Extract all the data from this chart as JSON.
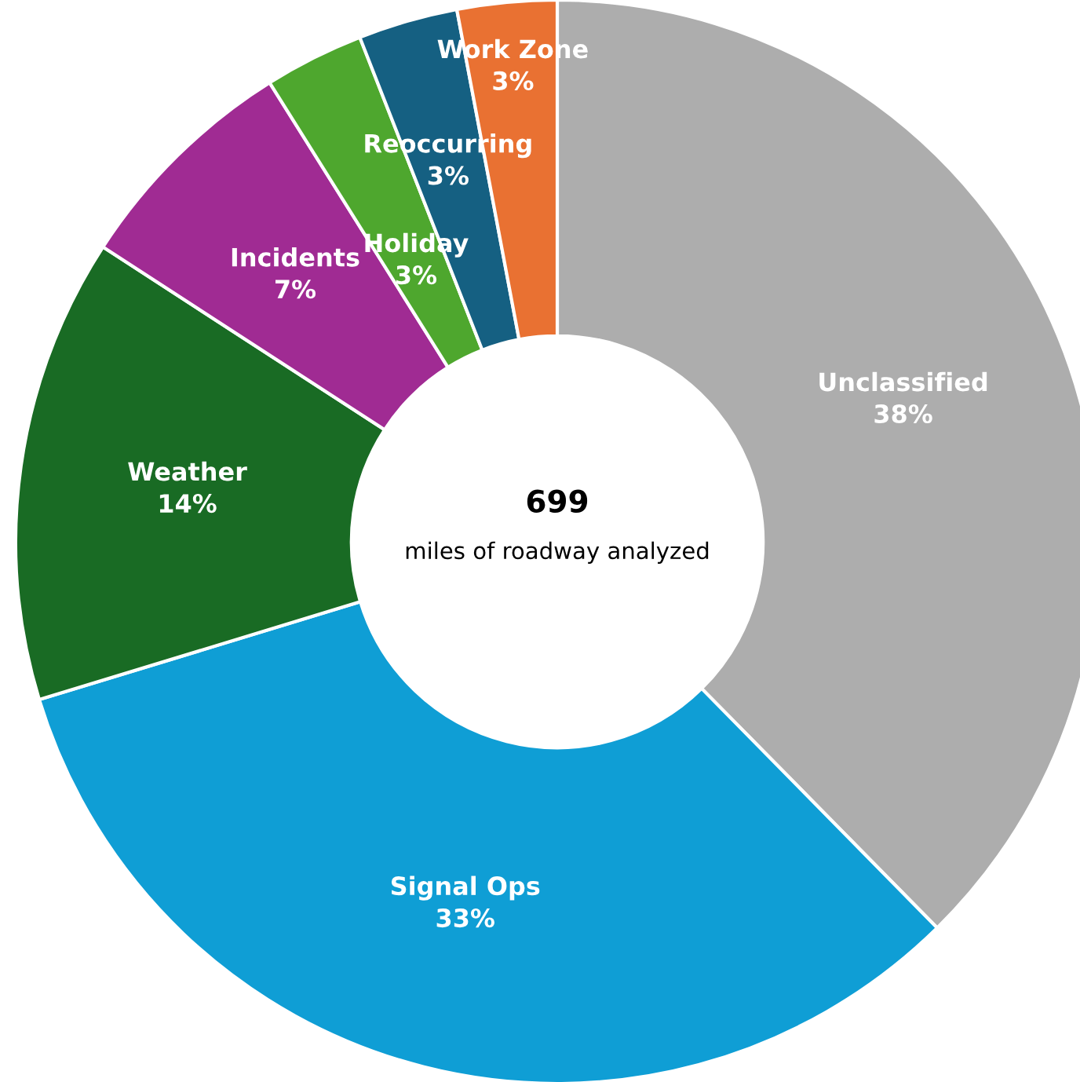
{
  "chart_data": {
    "type": "donut",
    "categories": [
      "Unclassified",
      "Signal Ops",
      "Weather",
      "Incidents",
      "Holiday",
      "Reoccurring",
      "Work Zone"
    ],
    "values": [
      38,
      33,
      14,
      7,
      3,
      3,
      3
    ],
    "value_labels": [
      "38%",
      "33%",
      "14%",
      "7%",
      "3%",
      "3%",
      "3%"
    ],
    "colors": [
      "#adadad",
      "#0f9ed5",
      "#196b24",
      "#a02b93",
      "#4ea72e",
      "#156082",
      "#e97132"
    ],
    "annotations": [
      "699",
      "miles of roadway analyzed"
    ]
  }
}
